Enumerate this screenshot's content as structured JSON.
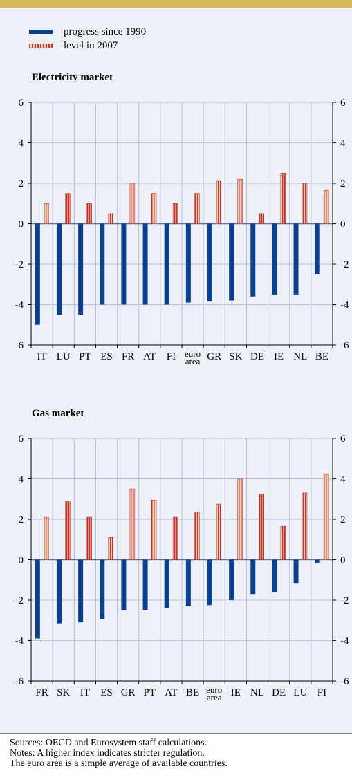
{
  "legend": {
    "progress_label": "progress since 1990",
    "level_label": "level in 2007"
  },
  "colors": {
    "progress": "#0b3f8f",
    "level": "#c0392b",
    "level_light": "#f2c7b6",
    "grid": "#b8c0dd",
    "banner": "#d4b85f"
  },
  "footer": {
    "sources": "Sources: OECD and Eurosystem staff calculations.",
    "notes": "Notes: A higher index indicates stricter regulation.",
    "euro_note": "The euro area is a simple average of available countries."
  },
  "chart_data": [
    {
      "type": "bar",
      "title": "Electricity market",
      "ylim": [
        -6,
        6
      ],
      "yticks": [
        -6,
        -4,
        -2,
        0,
        2,
        4,
        6
      ],
      "categories": [
        "IT",
        "LU",
        "PT",
        "ES",
        "FR",
        "AT",
        "FI",
        "euro area",
        "GR",
        "SK",
        "DE",
        "IE",
        "NL",
        "BE"
      ],
      "series": [
        {
          "name": "progress since 1990",
          "values": [
            -5.0,
            -4.5,
            -4.5,
            -4.0,
            -4.0,
            -4.0,
            -4.0,
            -3.9,
            -3.85,
            -3.8,
            -3.6,
            -3.5,
            -3.5,
            -2.5
          ]
        },
        {
          "name": "level in 2007",
          "values": [
            1.0,
            1.5,
            1.0,
            0.5,
            2.0,
            1.5,
            1.0,
            1.5,
            2.1,
            2.2,
            0.5,
            2.5,
            2.0,
            1.65
          ]
        }
      ],
      "grid": true
    },
    {
      "type": "bar",
      "title": "Gas market",
      "ylim": [
        -6,
        6
      ],
      "yticks": [
        -6,
        -4,
        -2,
        0,
        2,
        4,
        6
      ],
      "categories": [
        "FR",
        "SK",
        "IT",
        "ES",
        "GR",
        "PT",
        "AT",
        "BE",
        "euro area",
        "IE",
        "NL",
        "DE",
        "LU",
        "FI"
      ],
      "series": [
        {
          "name": "progress since 1990",
          "values": [
            -3.9,
            -3.15,
            -3.1,
            -2.95,
            -2.5,
            -2.5,
            -2.4,
            -2.3,
            -2.25,
            -2.0,
            -1.7,
            -1.6,
            -1.15,
            -0.15
          ]
        },
        {
          "name": "level in 2007",
          "values": [
            2.1,
            2.9,
            2.1,
            1.1,
            3.5,
            2.95,
            2.1,
            2.35,
            2.75,
            4.0,
            3.25,
            1.65,
            3.3,
            4.25
          ]
        }
      ],
      "grid": true
    }
  ]
}
